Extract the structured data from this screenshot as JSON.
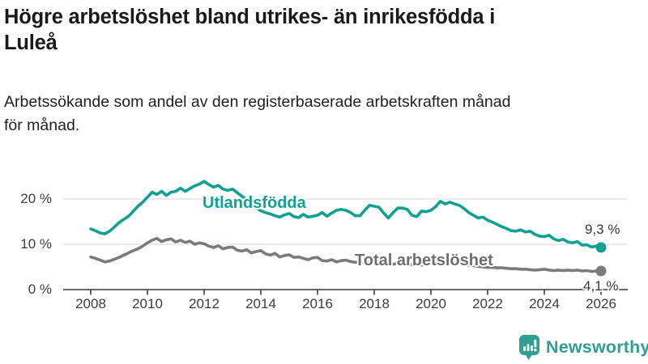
{
  "header": {
    "title_line1": "Högre arbetslöshet bland utrikes- än inrikesfödda i",
    "title_line2": "Luleå",
    "subtitle_line1": "Arbetssökande som andel av den registerbaserade arbetskraften månad",
    "subtitle_line2": "för månad."
  },
  "chart_data": {
    "type": "line",
    "title": "Arbetssökande som andel av den registerbaserade arbetskraften månad för månad",
    "xlabel": "",
    "ylabel": "",
    "grid": "horizontal",
    "legend_position": "inline-on-lines",
    "x_start_year": 2008,
    "x_step_months": 2,
    "x_ticks": [
      2008,
      2010,
      2012,
      2014,
      2016,
      2018,
      2020,
      2022,
      2024,
      2026
    ],
    "xlim": [
      2007.0,
      2027.0
    ],
    "ylim": [
      0,
      26
    ],
    "y_ticks": [
      {
        "value": 0,
        "label": "0 %"
      },
      {
        "value": 10,
        "label": "10 %"
      },
      {
        "value": 20,
        "label": "20 %"
      }
    ],
    "series": [
      {
        "name": "Utlandsfödda",
        "color": "#11A094",
        "end_label": "9,3 %",
        "end_value": 9.3,
        "values": [
          13.4,
          13.0,
          12.5,
          12.3,
          12.9,
          13.8,
          14.8,
          15.5,
          16.2,
          17.3,
          18.4,
          19.3,
          20.4,
          21.5,
          21.0,
          21.7,
          20.8,
          21.5,
          21.7,
          22.4,
          21.7,
          22.3,
          22.9,
          23.3,
          23.9,
          23.2,
          22.6,
          23.0,
          22.2,
          21.9,
          22.2,
          21.4,
          20.6,
          19.8,
          18.9,
          18.1,
          17.4,
          17.0,
          16.7,
          16.3,
          16.0,
          16.5,
          16.8,
          16.1,
          15.9,
          16.6,
          16.0,
          16.2,
          16.4,
          17.0,
          16.2,
          16.9,
          17.5,
          17.7,
          17.5,
          17.0,
          16.3,
          16.3,
          17.5,
          18.6,
          18.4,
          18.2,
          16.9,
          15.8,
          17.0,
          18.0,
          18.0,
          17.7,
          16.4,
          16.1,
          17.3,
          17.2,
          17.5,
          18.3,
          19.5,
          18.9,
          19.3,
          18.9,
          18.6,
          17.9,
          17.0,
          16.4,
          15.8,
          16.0,
          15.3,
          14.9,
          14.4,
          13.9,
          13.5,
          13.0,
          12.9,
          13.2,
          12.7,
          12.9,
          12.2,
          11.8,
          11.7,
          12.0,
          11.2,
          10.8,
          11.1,
          10.5,
          10.3,
          10.6,
          9.8,
          9.9,
          9.4,
          9.6,
          9.3
        ]
      },
      {
        "name": "Total arbetslöshet",
        "color": "#7B7B7B",
        "end_label": "4,1 %",
        "end_value": 4.1,
        "values": [
          7.2,
          6.9,
          6.5,
          6.1,
          6.3,
          6.7,
          7.1,
          7.6,
          8.1,
          8.6,
          9.0,
          9.6,
          10.3,
          10.9,
          11.3,
          10.6,
          11.0,
          11.2,
          10.5,
          10.9,
          10.4,
          10.7,
          10.0,
          10.3,
          10.1,
          9.6,
          9.3,
          9.7,
          9.0,
          9.3,
          9.4,
          8.7,
          8.5,
          8.8,
          8.1,
          8.4,
          8.6,
          7.9,
          7.6,
          8.0,
          7.2,
          7.5,
          7.7,
          7.1,
          7.2,
          6.9,
          6.6,
          7.0,
          7.1,
          6.4,
          6.3,
          6.6,
          6.1,
          6.4,
          6.5,
          6.2,
          6.0,
          6.2,
          5.9,
          6.1,
          6.1,
          5.9,
          5.7,
          5.9,
          5.6,
          5.8,
          5.8,
          5.6,
          5.5,
          5.7,
          5.4,
          5.6,
          5.8,
          6.1,
          6.3,
          6.1,
          6.0,
          5.9,
          5.8,
          5.6,
          5.4,
          5.3,
          5.1,
          5.0,
          4.9,
          4.9,
          4.8,
          4.8,
          4.7,
          4.6,
          4.6,
          4.5,
          4.5,
          4.4,
          4.3,
          4.4,
          4.5,
          4.3,
          4.2,
          4.3,
          4.2,
          4.3,
          4.2,
          4.3,
          4.1,
          4.2,
          4.0,
          4.1,
          4.1
        ]
      }
    ],
    "colors": {
      "grid": "#DDDDDD",
      "axis": "#3C3C3C",
      "tick_text": "#3C3C3C",
      "value_label_text": "#383838",
      "series_label_gray": "#6E6E6E"
    }
  },
  "footer": {
    "brand": "Newsworthy",
    "brand_color": "#2F9E93"
  }
}
